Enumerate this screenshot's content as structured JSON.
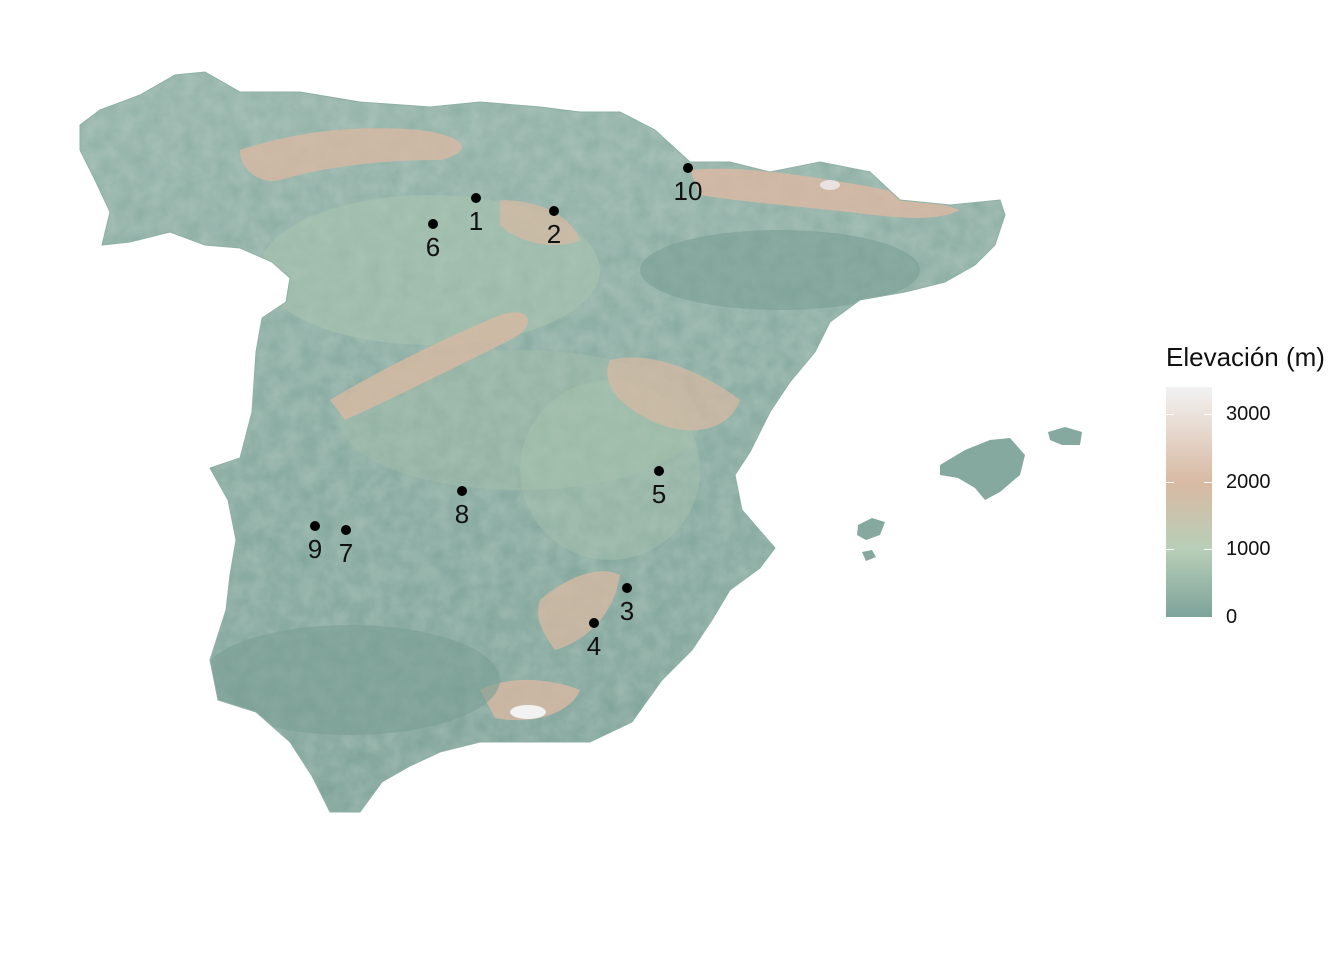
{
  "map": {
    "legend": {
      "title": "Elevación (m)",
      "ticks": [
        {
          "label": "3000",
          "value": 3000
        },
        {
          "label": "2000",
          "value": 2000
        },
        {
          "label": "1000",
          "value": 1000
        },
        {
          "label": "0",
          "value": 0
        }
      ],
      "min": 0,
      "max": 3400,
      "colors": {
        "low": "#7da39a",
        "mid": "#b9cfb8",
        "high": "#d8b9a3",
        "top": "#f2f2f2"
      }
    },
    "sites": [
      {
        "label": "1"
      },
      {
        "label": "2"
      },
      {
        "label": "3"
      },
      {
        "label": "4"
      },
      {
        "label": "5"
      },
      {
        "label": "6"
      },
      {
        "label": "7"
      },
      {
        "label": "8"
      },
      {
        "label": "9"
      },
      {
        "label": "10"
      }
    ]
  }
}
